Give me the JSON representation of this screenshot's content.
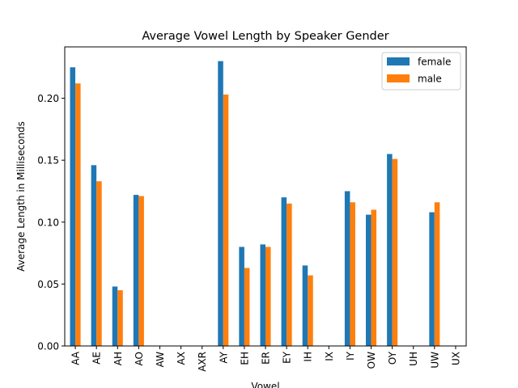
{
  "chart_data": {
    "type": "bar",
    "title": "Average Vowel Length by Speaker Gender",
    "xlabel": "Vowel",
    "ylabel": "Average Length in Milliseconds",
    "categories": [
      "AA",
      "AE",
      "AH",
      "AO",
      "AW",
      "AX",
      "AXR",
      "AY",
      "EH",
      "ER",
      "EY",
      "IH",
      "IX",
      "IY",
      "OW",
      "OY",
      "UH",
      "UW",
      "UX"
    ],
    "series": [
      {
        "name": "female",
        "color": "#1f77b4",
        "values": [
          0.225,
          0.146,
          0.048,
          0.122,
          null,
          null,
          null,
          0.23,
          0.08,
          0.082,
          0.12,
          0.065,
          null,
          0.125,
          0.106,
          0.155,
          null,
          0.108,
          null
        ]
      },
      {
        "name": "male",
        "color": "#ff7f0e",
        "values": [
          0.212,
          0.133,
          0.045,
          0.121,
          null,
          null,
          null,
          0.203,
          0.063,
          0.08,
          0.115,
          0.057,
          null,
          0.116,
          0.11,
          0.151,
          null,
          0.116,
          null
        ]
      }
    ],
    "ylim": [
      0,
      0.2415
    ],
    "yticks": [
      0.0,
      0.05,
      0.1,
      0.15,
      0.2
    ],
    "ytick_labels": [
      "0.00",
      "0.05",
      "0.10",
      "0.15",
      "0.20"
    ],
    "grid": false,
    "legend": "top-right"
  }
}
